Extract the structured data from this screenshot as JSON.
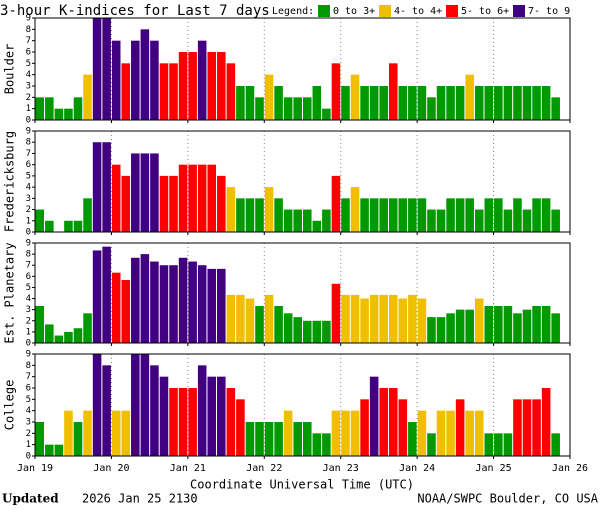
{
  "title": "3-hour K-indices for Last 7 days",
  "legend_title": "Legend:",
  "legend": [
    {
      "label": "0 to 3+",
      "color": "#009900",
      "min": 0
    },
    {
      "label": "4- to 4+",
      "color": "#f0c000",
      "min": 3.67
    },
    {
      "label": "5- to 6+",
      "color": "#ff0000",
      "min": 4.67
    },
    {
      "label": "7- to 9",
      "color": "#400080",
      "min": 6.67
    }
  ],
  "xlabel": "Coordinate Universal Time (UTC)",
  "footer": {
    "updated_label": "Updated",
    "updated_time": "2026 Jan 25 2130",
    "source": "NOAA/SWPC Boulder, CO USA"
  },
  "chart_data": [
    {
      "type": "bar",
      "ylabel": "Boulder",
      "ylim": [
        0,
        9
      ],
      "yticks": [
        0,
        1,
        2,
        3,
        4,
        5,
        6,
        7,
        8,
        9
      ],
      "xlim": [
        0,
        7
      ],
      "xticks": [
        0,
        1,
        2,
        3,
        4,
        5,
        6,
        7
      ],
      "grid": true,
      "values": [
        2,
        2,
        1,
        1,
        2,
        4,
        9,
        9,
        7,
        5,
        7,
        8,
        7,
        5,
        5,
        6,
        6,
        7,
        6,
        6,
        5,
        3,
        3,
        2,
        4,
        3,
        2,
        2,
        2,
        3,
        1,
        5,
        3,
        4,
        3,
        3,
        3,
        5,
        3,
        3,
        3,
        2,
        3,
        3,
        3,
        4,
        3,
        3,
        3,
        3,
        3,
        3,
        3,
        3,
        2,
        0
      ]
    },
    {
      "type": "bar",
      "ylabel": "Fredericksburg",
      "ylim": [
        0,
        9
      ],
      "yticks": [
        0,
        1,
        2,
        3,
        4,
        5,
        6,
        7,
        8,
        9
      ],
      "xlim": [
        0,
        7
      ],
      "xticks": [
        0,
        1,
        2,
        3,
        4,
        5,
        6,
        7
      ],
      "grid": true,
      "values": [
        2,
        1,
        0,
        1,
        1,
        3,
        8,
        8,
        6,
        5,
        7,
        7,
        7,
        5,
        5,
        6,
        6,
        6,
        6,
        5,
        4,
        3,
        3,
        3,
        4,
        3,
        2,
        2,
        2,
        1,
        2,
        5,
        3,
        4,
        3,
        3,
        3,
        3,
        3,
        3,
        3,
        2,
        2,
        3,
        3,
        3,
        2,
        3,
        3,
        2,
        3,
        2,
        3,
        3,
        2,
        0
      ]
    },
    {
      "type": "bar",
      "ylabel": "Est. Planetary",
      "ylim": [
        0,
        9
      ],
      "yticks": [
        0,
        1,
        2,
        3,
        4,
        5,
        6,
        7,
        8,
        9
      ],
      "xlim": [
        0,
        7
      ],
      "xticks": [
        0,
        1,
        2,
        3,
        4,
        5,
        6,
        7
      ],
      "grid": true,
      "values": [
        3.33,
        1.67,
        0.67,
        1,
        1.33,
        2.67,
        8.33,
        8.67,
        6.33,
        5.67,
        7.67,
        8,
        7.33,
        7,
        7,
        7.67,
        7.33,
        7,
        6.67,
        6.67,
        4.33,
        4.33,
        4,
        3.33,
        4.33,
        3.33,
        2.67,
        2.33,
        2,
        2,
        2,
        5.33,
        4.33,
        4.33,
        4,
        4.33,
        4.33,
        4.33,
        4,
        4.33,
        4,
        2.33,
        2.33,
        2.67,
        3,
        3,
        4,
        3.33,
        3.33,
        3.33,
        2.67,
        3,
        3.33,
        3.33,
        2.67,
        0
      ]
    },
    {
      "type": "bar",
      "ylabel": "College",
      "ylim": [
        0,
        9
      ],
      "yticks": [
        0,
        1,
        2,
        3,
        4,
        5,
        6,
        7,
        8,
        9
      ],
      "xlim": [
        0,
        7
      ],
      "grid": true,
      "xticks": [
        {
          "value": 0,
          "label": "Jan 19"
        },
        {
          "value": 1,
          "label": "Jan 20"
        },
        {
          "value": 2,
          "label": "Jan 21"
        },
        {
          "value": 3,
          "label": "Jan 22"
        },
        {
          "value": 4,
          "label": "Jan 23"
        },
        {
          "value": 5,
          "label": "Jan 24"
        },
        {
          "value": 6,
          "label": "Jan 25"
        },
        {
          "value": 7,
          "label": "Jan 26"
        }
      ],
      "values": [
        3,
        1,
        1,
        4,
        3,
        4,
        9,
        8,
        4,
        4,
        9,
        9,
        8,
        7,
        6,
        6,
        6,
        8,
        7,
        7,
        6,
        5,
        3,
        3,
        3,
        3,
        4,
        3,
        3,
        2,
        2,
        4,
        4,
        4,
        5,
        7,
        6,
        6,
        5,
        3,
        4,
        2,
        4,
        4,
        5,
        4,
        4,
        2,
        2,
        2,
        5,
        5,
        5,
        6,
        2,
        0
      ]
    }
  ]
}
